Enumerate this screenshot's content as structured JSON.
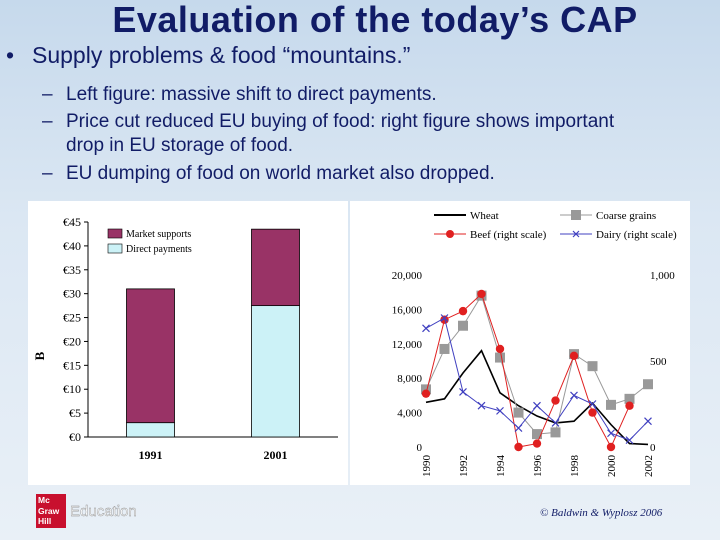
{
  "slide": {
    "title": "Evaluation of the today’s CAP",
    "bullet": "Supply problems & food “mountains.”",
    "bullet_marker": "•",
    "subbullet_marker": "–",
    "subbullets": [
      {
        "line1": "Left figure: massive shift to direct payments."
      },
      {
        "line1": "Price cut reduced EU buying of food: right figure shows important",
        "line2": "drop in EU storage of food."
      },
      {
        "line1": "EU dumping of food on world market also dropped."
      }
    ],
    "logo_lines": [
      "Mc",
      "Graw",
      "Hill"
    ],
    "logo_text": "Education",
    "copyright": "© Baldwin & Wyplosz 2006"
  },
  "chart_data": [
    {
      "type": "bar",
      "stacked": true,
      "categories": [
        "1991",
        "2001"
      ],
      "ylabel": "B",
      "ylim": [
        0,
        45
      ],
      "yticks": [
        "€0",
        "€5",
        "€10",
        "€15",
        "€20",
        "€25",
        "€30",
        "€35",
        "€40",
        "€45"
      ],
      "legend_position": "top-right",
      "series": [
        {
          "name": "Direct payments",
          "values": [
            3,
            27.5
          ],
          "color": "#ccf2f7"
        },
        {
          "name": "Market supports",
          "values": [
            28,
            16
          ],
          "color": "#993366"
        }
      ]
    },
    {
      "type": "line",
      "x": [
        1990,
        1991,
        1992,
        1993,
        1994,
        1995,
        1996,
        1997,
        1998,
        1999,
        2000,
        2001,
        2002
      ],
      "xticks": [
        "1990",
        "1992",
        "1994",
        "1996",
        "1998",
        "2000",
        "2002"
      ],
      "ylim_left": [
        0,
        20000
      ],
      "yticks_left": [
        "0",
        "4,000",
        "8,000",
        "12,000",
        "16,000",
        "20,000"
      ],
      "ylim_right": [
        0,
        1000
      ],
      "yticks_right": [
        "0",
        "500",
        "1,000"
      ],
      "legend_position": "top",
      "series": [
        {
          "name": "Wheat",
          "axis": "left",
          "color": "#000000",
          "marker": "none",
          "values": [
            5200,
            5600,
            8600,
            11200,
            6300,
            4800,
            3600,
            2800,
            3000,
            5100,
            2600,
            400,
            300
          ]
        },
        {
          "name": "Coarse grains",
          "axis": "left",
          "color": "#999999",
          "marker": "square",
          "values": [
            6700,
            11400,
            14100,
            17600,
            10400,
            4000,
            1500,
            1700,
            10800,
            9400,
            4900,
            5600,
            7300
          ]
        },
        {
          "name": "Beef  (right scale)",
          "axis": "right",
          "color": "#e02020",
          "marker": "circle",
          "values": [
            310,
            740,
            790,
            890,
            570,
            0,
            20,
            270,
            530,
            200,
            0,
            240,
            null
          ]
        },
        {
          "name": "Dairy   (right scale)",
          "axis": "right",
          "color": "#4040c0",
          "marker": "x",
          "values": [
            690,
            750,
            320,
            240,
            210,
            110,
            240,
            140,
            300,
            250,
            80,
            40,
            150
          ]
        }
      ]
    }
  ]
}
